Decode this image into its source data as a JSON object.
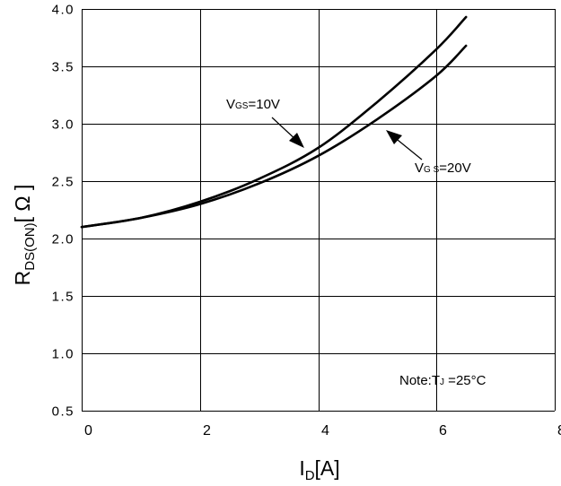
{
  "chart_data": {
    "type": "line",
    "x": [
      0,
      1,
      2,
      3,
      4,
      5,
      6,
      6.5
    ],
    "xlim": [
      0,
      8
    ],
    "ylim": [
      0.5,
      4.0
    ],
    "x_ticks": [
      "0",
      "2",
      "4",
      "6",
      "8"
    ],
    "y_ticks": [
      "0.5",
      "1.0",
      "1.5",
      "2.0",
      "2.5",
      "3.0",
      "3.5",
      "4.0"
    ],
    "grid": true,
    "xlabel": {
      "main": "I",
      "sub": "D",
      "suffix": "[A]"
    },
    "ylabel": {
      "main": "R",
      "sub": "DS(ON)",
      "suffix": "[ Ω ]"
    },
    "series": [
      {
        "name": "VGS=10V",
        "values": [
          2.1,
          2.18,
          2.32,
          2.52,
          2.79,
          3.19,
          3.65,
          3.93
        ]
      },
      {
        "name": "VGS=20V",
        "values": [
          2.1,
          2.18,
          2.3,
          2.48,
          2.72,
          3.04,
          3.42,
          3.68
        ]
      }
    ],
    "annotations": {
      "vgs10": {
        "main": "V",
        "sub": "GS",
        "suffix": "=10V"
      },
      "vgs20": {
        "main": "V",
        "sub": "G S",
        "suffix": "=20V"
      },
      "note": {
        "prefix": "Note:T",
        "sub": "J",
        "suffix": " =25°C"
      }
    }
  }
}
